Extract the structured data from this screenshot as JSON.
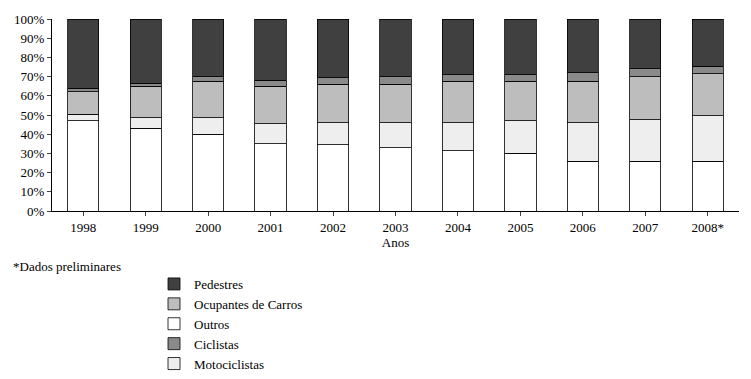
{
  "chart_data": {
    "type": "bar",
    "stacked": true,
    "xlabel": "Anos",
    "annotations": [
      "*Dados preliminares"
    ],
    "categories": [
      "1998",
      "1999",
      "2000",
      "2001",
      "2002",
      "2003",
      "2004",
      "2005",
      "2006",
      "2007",
      "2008*"
    ],
    "series": [
      {
        "name": "Outros",
        "color": "#ffffff",
        "values": [
          47,
          43,
          40,
          35,
          34.5,
          33,
          31.5,
          30,
          26,
          26,
          26
        ]
      },
      {
        "name": "Motociclistas",
        "color": "#eeeeee",
        "values": [
          3.5,
          5.5,
          8.5,
          10.5,
          11.5,
          13,
          14.5,
          17,
          20,
          21.5,
          23.5
        ]
      },
      {
        "name": "Ocupantes de Carros",
        "color": "#bdbdbd",
        "values": [
          11.5,
          16.5,
          19,
          19.5,
          20,
          20,
          21.5,
          20.5,
          21.5,
          22.5,
          22
        ]
      },
      {
        "name": "Ciclistas",
        "color": "#8a8a8a",
        "values": [
          2,
          1.5,
          2.5,
          3,
          3.5,
          4,
          3.5,
          3.5,
          4.5,
          4,
          4
        ]
      },
      {
        "name": "Pedestres",
        "color": "#404040",
        "values": [
          36,
          33.5,
          30,
          32,
          30.5,
          30,
          29,
          29,
          28,
          26,
          24.5
        ]
      }
    ],
    "ylim": [
      0,
      100
    ],
    "yticks": [
      {
        "value": 0,
        "label": "0%"
      },
      {
        "value": 10,
        "label": "10%"
      },
      {
        "value": 20,
        "label": "20%"
      },
      {
        "value": 30,
        "label": "30%"
      },
      {
        "value": 40,
        "label": "40%"
      },
      {
        "value": 50,
        "label": "50%"
      },
      {
        "value": 60,
        "label": "60%"
      },
      {
        "value": 70,
        "label": "70%"
      },
      {
        "value": 80,
        "label": "80%"
      },
      {
        "value": 90,
        "label": "90%"
      },
      {
        "value": 100,
        "label": "100%"
      }
    ],
    "grid": false,
    "legend": "bottom"
  }
}
